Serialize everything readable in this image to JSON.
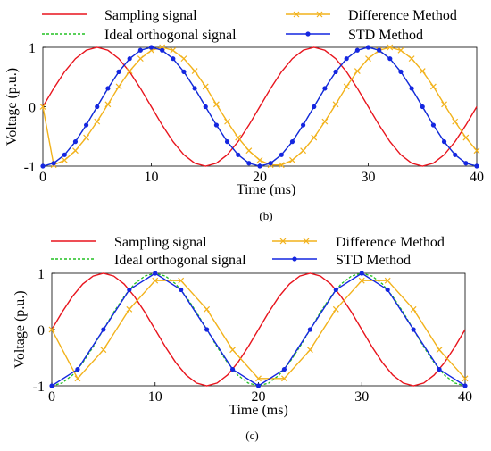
{
  "chart_data": [
    {
      "type": "line",
      "panel_label": "(b)",
      "xlabel": "Time (ms)",
      "ylabel": "Voltage (p.u.)",
      "xlim": [
        0,
        40
      ],
      "ylim": [
        -1,
        1
      ],
      "xticks": [
        "0",
        "10",
        "20",
        "30",
        "40"
      ],
      "yticks": [
        "-1",
        "0",
        "1"
      ],
      "legend": {
        "placement": "top",
        "columns": 2
      },
      "series": [
        {
          "name": "Sampling signal",
          "color": "#e8141d",
          "style": "solid",
          "marker": "none",
          "x": [
            0,
            1,
            2,
            3,
            4,
            5,
            6,
            7,
            8,
            9,
            10,
            11,
            12,
            13,
            14,
            15,
            16,
            17,
            18,
            19,
            20,
            21,
            22,
            23,
            24,
            25,
            26,
            27,
            28,
            29,
            30,
            31,
            32,
            33,
            34,
            35,
            36,
            37,
            38,
            39,
            40
          ],
          "y": [
            0,
            0.309,
            0.588,
            0.809,
            0.951,
            1,
            0.951,
            0.809,
            0.588,
            0.309,
            0,
            -0.309,
            -0.588,
            -0.809,
            -0.951,
            -1,
            -0.951,
            -0.809,
            -0.588,
            -0.309,
            0,
            0.309,
            0.588,
            0.809,
            0.951,
            1,
            0.951,
            0.809,
            0.588,
            0.309,
            0,
            -0.309,
            -0.588,
            -0.809,
            -0.951,
            -1,
            -0.951,
            -0.809,
            -0.588,
            -0.309,
            0
          ]
        },
        {
          "name": "Ideal orthogonal signal",
          "color": "#22c022",
          "style": "dashed",
          "marker": "none",
          "x": [
            0,
            1,
            2,
            3,
            4,
            5,
            6,
            7,
            8,
            9,
            10,
            11,
            12,
            13,
            14,
            15,
            16,
            17,
            18,
            19,
            20,
            21,
            22,
            23,
            24,
            25,
            26,
            27,
            28,
            29,
            30,
            31,
            32,
            33,
            34,
            35,
            36,
            37,
            38,
            39,
            40
          ],
          "y": [
            -1,
            -0.951,
            -0.809,
            -0.588,
            -0.309,
            0,
            0.309,
            0.588,
            0.809,
            0.951,
            1,
            0.951,
            0.809,
            0.588,
            0.309,
            0,
            -0.309,
            -0.588,
            -0.809,
            -0.951,
            -1,
            -0.951,
            -0.809,
            -0.588,
            -0.309,
            0,
            0.309,
            0.588,
            0.809,
            0.951,
            1,
            0.951,
            0.809,
            0.588,
            0.309,
            0,
            -0.309,
            -0.588,
            -0.809,
            -0.951,
            -1
          ]
        },
        {
          "name": "Difference Method",
          "color": "#f2b21b",
          "style": "solid",
          "marker": "x",
          "x": [
            0,
            1,
            2,
            3,
            4,
            5,
            6,
            7,
            8,
            9,
            10,
            11,
            12,
            13,
            14,
            15,
            16,
            17,
            18,
            19,
            20,
            21,
            22,
            23,
            24,
            25,
            26,
            27,
            28,
            29,
            30,
            31,
            32,
            33,
            34,
            35,
            36,
            37,
            38,
            39,
            40
          ],
          "y": [
            0,
            -0.98,
            -0.9,
            -0.74,
            -0.52,
            -0.25,
            0.04,
            0.34,
            0.6,
            0.81,
            0.95,
            1,
            0.95,
            0.81,
            0.6,
            0.34,
            0.04,
            -0.25,
            -0.52,
            -0.74,
            -0.9,
            -0.98,
            -0.98,
            -0.9,
            -0.74,
            -0.52,
            -0.25,
            0.04,
            0.34,
            0.6,
            0.81,
            0.95,
            1,
            0.95,
            0.81,
            0.6,
            0.34,
            0.04,
            -0.25,
            -0.52,
            -0.74
          ]
        },
        {
          "name": "STD Method",
          "color": "#1426e0",
          "style": "solid",
          "marker": "dot",
          "x": [
            0,
            1,
            2,
            3,
            4,
            5,
            6,
            7,
            8,
            9,
            10,
            11,
            12,
            13,
            14,
            15,
            16,
            17,
            18,
            19,
            20,
            21,
            22,
            23,
            24,
            25,
            26,
            27,
            28,
            29,
            30,
            31,
            32,
            33,
            34,
            35,
            36,
            37,
            38,
            39,
            40
          ],
          "y": [
            -1,
            -0.951,
            -0.809,
            -0.588,
            -0.309,
            0,
            0.309,
            0.588,
            0.809,
            0.951,
            1,
            0.951,
            0.809,
            0.588,
            0.309,
            0,
            -0.309,
            -0.588,
            -0.809,
            -0.951,
            -1,
            -0.951,
            -0.809,
            -0.588,
            -0.309,
            0,
            0.309,
            0.588,
            0.809,
            0.951,
            1,
            0.951,
            0.809,
            0.588,
            0.309,
            0,
            -0.309,
            -0.588,
            -0.809,
            -0.951,
            -1
          ]
        }
      ]
    },
    {
      "type": "line",
      "panel_label": "(c)",
      "xlabel": "Time (ms)",
      "ylabel": "Voltage (p.u.)",
      "xlim": [
        0,
        40
      ],
      "ylim": [
        -1,
        1
      ],
      "xticks": [
        "0",
        "10",
        "20",
        "30",
        "40"
      ],
      "yticks": [
        "-1",
        "0",
        "1"
      ],
      "legend": {
        "placement": "top",
        "columns": 2
      },
      "series": [
        {
          "name": "Sampling signal",
          "color": "#e8141d",
          "style": "solid",
          "marker": "none",
          "x": [
            0,
            1,
            2,
            3,
            4,
            5,
            6,
            7,
            8,
            9,
            10,
            11,
            12,
            13,
            14,
            15,
            16,
            17,
            18,
            19,
            20,
            21,
            22,
            23,
            24,
            25,
            26,
            27,
            28,
            29,
            30,
            31,
            32,
            33,
            34,
            35,
            36,
            37,
            38,
            39,
            40
          ],
          "y": [
            0,
            0.309,
            0.588,
            0.809,
            0.951,
            1,
            0.951,
            0.809,
            0.588,
            0.309,
            0,
            -0.309,
            -0.588,
            -0.809,
            -0.951,
            -1,
            -0.951,
            -0.809,
            -0.588,
            -0.309,
            0,
            0.309,
            0.588,
            0.809,
            0.951,
            1,
            0.951,
            0.809,
            0.588,
            0.309,
            0,
            -0.309,
            -0.588,
            -0.809,
            -0.951,
            -1,
            -0.951,
            -0.809,
            -0.588,
            -0.309,
            0
          ]
        },
        {
          "name": "Ideal orthogonal signal",
          "color": "#22c022",
          "style": "dashed",
          "marker": "none",
          "x": [
            0,
            1,
            2,
            3,
            4,
            5,
            6,
            7,
            8,
            9,
            10,
            11,
            12,
            13,
            14,
            15,
            16,
            17,
            18,
            19,
            20,
            21,
            22,
            23,
            24,
            25,
            26,
            27,
            28,
            29,
            30,
            31,
            32,
            33,
            34,
            35,
            36,
            37,
            38,
            39,
            40
          ],
          "y": [
            -1,
            -0.951,
            -0.809,
            -0.588,
            -0.309,
            0,
            0.309,
            0.588,
            0.809,
            0.951,
            1,
            0.951,
            0.809,
            0.588,
            0.309,
            0,
            -0.309,
            -0.588,
            -0.809,
            -0.951,
            -1,
            -0.951,
            -0.809,
            -0.588,
            -0.309,
            0,
            0.309,
            0.588,
            0.809,
            0.951,
            1,
            0.951,
            0.809,
            0.588,
            0.309,
            0,
            -0.309,
            -0.588,
            -0.809,
            -0.951,
            -1
          ]
        },
        {
          "name": "Difference Method",
          "color": "#f2b21b",
          "style": "solid",
          "marker": "x",
          "x": [
            0,
            2.5,
            5,
            7.5,
            10,
            12.5,
            15,
            17.5,
            20,
            22.5,
            25,
            27.5,
            30,
            32.5,
            35,
            37.5,
            40
          ],
          "y": [
            0,
            -0.87,
            -0.36,
            0.36,
            0.87,
            0.87,
            0.36,
            -0.36,
            -0.87,
            -0.87,
            -0.36,
            0.36,
            0.87,
            0.87,
            0.36,
            -0.36,
            -0.87
          ]
        },
        {
          "name": "STD Method",
          "color": "#1426e0",
          "style": "solid",
          "marker": "dot",
          "x": [
            0,
            2.5,
            5,
            7.5,
            10,
            12.5,
            15,
            17.5,
            20,
            22.5,
            25,
            27.5,
            30,
            32.5,
            35,
            37.5,
            40
          ],
          "y": [
            -1,
            -0.707,
            0,
            0.707,
            1,
            0.707,
            0,
            -0.707,
            -1,
            -0.707,
            0,
            0.707,
            1,
            0.707,
            0,
            -0.707,
            -1
          ]
        }
      ]
    }
  ]
}
